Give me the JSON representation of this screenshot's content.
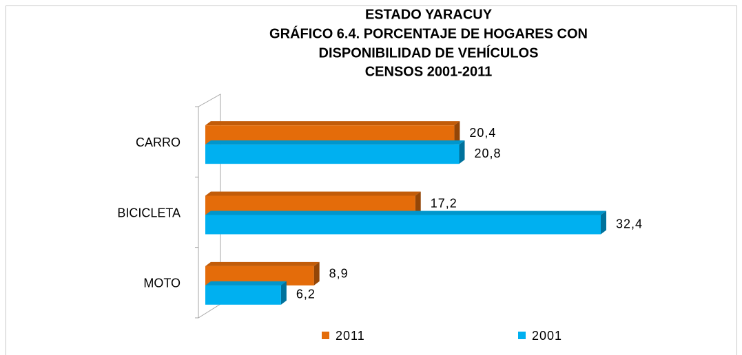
{
  "chart_data": {
    "type": "bar",
    "orientation": "horizontal",
    "title": [
      "ESTADO YARACUY",
      "GRÁFICO 6.4. PORCENTAJE DE HOGARES CON",
      "DISPONIBILIDAD DE VEHÍCULOS",
      "CENSOS 2001-2011"
    ],
    "categories": [
      "CARRO",
      "BICICLETA",
      "MOTO"
    ],
    "series": [
      {
        "name": "2011",
        "color": "#e46c0a",
        "values": [
          20.4,
          17.2,
          8.9
        ],
        "value_labels": [
          "20,4",
          "17,2",
          "8,9"
        ]
      },
      {
        "name": "2001",
        "color": "#00b0f0",
        "values": [
          20.8,
          32.4,
          6.2
        ],
        "value_labels": [
          "20,8",
          "32,4",
          "6,2"
        ]
      }
    ],
    "legend": "bottom"
  }
}
